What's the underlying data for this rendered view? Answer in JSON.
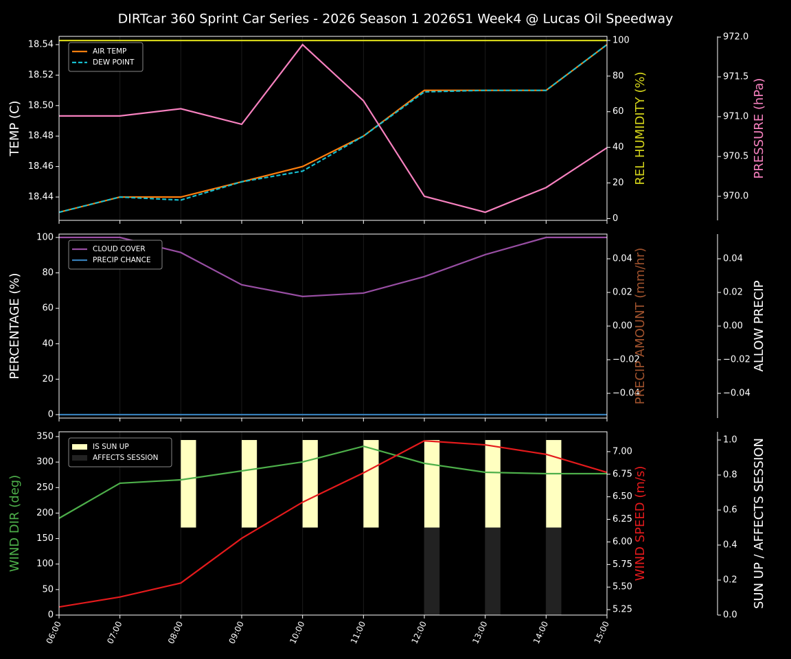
{
  "chart_data": [
    {
      "type": "line",
      "title": "DIRTcar 360 Sprint Car Series - 2026 Season 1 2026S1 Week4 @ Lucas Oil Speedway",
      "x": [
        "06:00",
        "07:00",
        "08:00",
        "09:00",
        "10:00",
        "11:00",
        "12:00",
        "13:00",
        "14:00",
        "15:00"
      ],
      "grid": true,
      "legend": "upper left",
      "ylabel": "TEMP (C)",
      "ylabel_color": "#ffffff",
      "ylim": [
        18.4247,
        18.5454
      ],
      "yticks": [
        18.44,
        18.46,
        18.48,
        {
          "value": 18.5,
          "label": "18.50"
        },
        18.52,
        18.54
      ],
      "y2label": "REL HUMIDITY (%)",
      "y2label_color": "#d4d41a",
      "y2lim": [
        -1,
        102.3
      ],
      "y2ticks": [
        0,
        20,
        40,
        60,
        80,
        100
      ],
      "y3label": "PRESSURE (hPa)",
      "y3label_color": "#f781bf",
      "y3lim": [
        969.698,
        972.009
      ],
      "y3ticks": [
        {
          "value": 970,
          "label": "970.0"
        },
        {
          "value": 970.5,
          "label": "970.5"
        },
        {
          "value": 971,
          "label": "971.0"
        },
        {
          "value": 971.5,
          "label": "971.5"
        },
        {
          "value": 972,
          "label": "972.0"
        }
      ],
      "series": [
        {
          "name": "AIR TEMP",
          "color": "#ff7f0e",
          "axis": "y",
          "legend": true,
          "values": [
            18.43,
            18.44,
            18.44,
            18.45,
            18.46,
            18.48,
            18.51,
            18.51,
            18.51,
            18.54
          ]
        },
        {
          "name": "DEW POINT",
          "color": "#17becf",
          "axis": "y",
          "legend": true,
          "dashed": true,
          "values": [
            18.43,
            18.44,
            18.438,
            18.45,
            18.457,
            18.48,
            18.509,
            18.51,
            18.51,
            18.54
          ]
        },
        {
          "color": "#d4d41a",
          "axis": "y2",
          "legend": false,
          "values": [
            100,
            100,
            100,
            100,
            100,
            100,
            100,
            100,
            100,
            100
          ]
        },
        {
          "color": "#f781bf",
          "axis": "y3",
          "legend": false,
          "values": [
            971.01,
            971.01,
            971.1,
            970.905,
            971.905,
            971.2,
            970.0,
            969.8,
            970.11,
            970.61
          ]
        }
      ]
    },
    {
      "type": "line",
      "x": [
        "06:00",
        "07:00",
        "08:00",
        "09:00",
        "10:00",
        "11:00",
        "12:00",
        "13:00",
        "14:00",
        "15:00"
      ],
      "grid": true,
      "legend": "upper left",
      "ylabel": "PERCENTAGE (%)",
      "ylabel_color": "#ffffff",
      "ylim": [
        -1.94,
        101.9
      ],
      "yticks": [
        0,
        20,
        40,
        60,
        80,
        100
      ],
      "y2label": "PRECIP AMOUNT (mm/hr)",
      "y2label_color": "#a0522d",
      "y2lim": [
        -0.0547,
        0.0547
      ],
      "y2ticks": [
        {
          "value": -0.04,
          "label": "−0.04"
        },
        {
          "value": -0.02,
          "label": "−0.02"
        },
        {
          "value": 0,
          "label": "0.00"
        },
        0.02,
        0.04
      ],
      "y3label": "ALLOW PRECIP",
      "y3label_color": "#ffffff",
      "y3lim": [
        -0.0547,
        0.0547
      ],
      "y3ticks": [
        {
          "value": -0.04,
          "label": "−0.04"
        },
        {
          "value": -0.02,
          "label": "−0.02"
        },
        {
          "value": 0,
          "label": "0.00"
        },
        0.02,
        0.04
      ],
      "series": [
        {
          "name": "CLOUD COVER",
          "color": "#984ea3",
          "axis": "y",
          "legend": true,
          "values": [
            100,
            100,
            91.5,
            73.3,
            66.7,
            68.6,
            77.9,
            90.3,
            100,
            100
          ]
        },
        {
          "name": "PRECIP CHANCE",
          "color": "#377eb8",
          "axis": "y",
          "legend": true,
          "values": [
            0,
            0,
            0,
            0,
            0,
            0,
            0,
            0,
            0,
            0
          ]
        }
      ]
    },
    {
      "type": "line",
      "x": [
        "06:00",
        "07:00",
        "08:00",
        "09:00",
        "10:00",
        "11:00",
        "12:00",
        "13:00",
        "14:00",
        "15:00"
      ],
      "grid": true,
      "legend": "upper left",
      "show_xticklabels": true,
      "ylabel": "WIND DIR (deg)",
      "ylabel_color": "#4daf4a",
      "ylim": [
        0,
        359.4
      ],
      "yticks": [
        0,
        50,
        100,
        150,
        200,
        250,
        300,
        350
      ],
      "y2label": "WIND SPEED (m/s)",
      "y2label_color": "#e41a1c",
      "y2lim": [
        5.19,
        7.22
      ],
      "y2ticks": [
        5.25,
        {
          "value": 5.5,
          "label": "5.50"
        },
        5.75,
        {
          "value": 6,
          "label": "6.00"
        },
        6.25,
        {
          "value": 6.5,
          "label": "6.50"
        },
        6.75,
        {
          "value": 7,
          "label": "7.00"
        }
      ],
      "y3label": "SUN UP / AFFECTS SESSION",
      "y3label_color": "#ffffff",
      "y3lim": [
        0,
        1.047
      ],
      "y3ticks": [
        {
          "value": 0,
          "label": "0.0"
        },
        0.2,
        0.4,
        0.6,
        0.8,
        {
          "value": 1,
          "label": "1.0"
        }
      ],
      "series": [
        {
          "name": "IS SUN UP",
          "type": "bar",
          "color": "#ffffc0",
          "axis": "y3",
          "legend": true,
          "bottom": 0.5,
          "values": [
            0,
            0,
            0.5,
            0.5,
            0.5,
            0.5,
            0.5,
            0.5,
            0.5,
            0
          ]
        },
        {
          "name": "AFFECTS SESSION",
          "type": "bar",
          "color": "#222222",
          "axis": "y3",
          "legend": true,
          "bottom": 0,
          "values": [
            0,
            0,
            0,
            0,
            0,
            0,
            0.5,
            0.5,
            0.5,
            0
          ]
        },
        {
          "color": "#4daf4a",
          "axis": "y",
          "legend": false,
          "values": [
            189.8,
            258.5,
            265.2,
            282.7,
            300.2,
            331,
            297.5,
            280,
            277.3,
            277.3
          ]
        },
        {
          "color": "#e41a1c",
          "axis": "y2",
          "legend": false,
          "values": [
            5.28,
            5.39,
            5.545,
            6.04,
            6.44,
            6.765,
            7.12,
            7.075,
            6.97,
            6.77
          ]
        }
      ]
    }
  ]
}
